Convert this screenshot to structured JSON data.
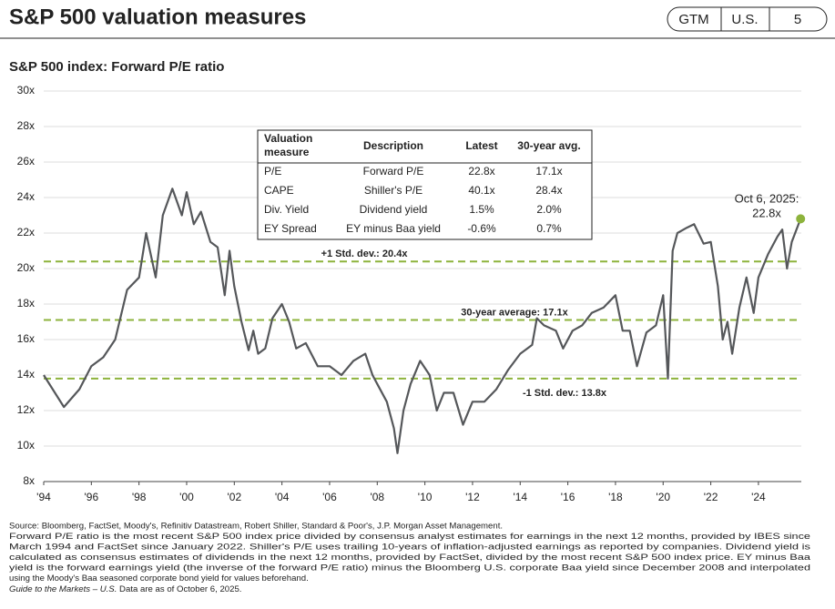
{
  "header": {
    "title": "S&P 500 valuation measures",
    "badges": [
      "GTM",
      "U.S.",
      "5"
    ]
  },
  "chart_data": {
    "type": "line",
    "title": "S&P 500 index: Forward P/E ratio",
    "x": [
      1994.0,
      1994.85,
      1995.5,
      1996.0,
      1996.5,
      1997.0,
      1997.5,
      1998.0,
      1998.3,
      1998.7,
      1999.0,
      1999.4,
      1999.8,
      2000.0,
      2000.3,
      2000.6,
      2001.0,
      2001.3,
      2001.6,
      2001.8,
      2002.0,
      2002.3,
      2002.6,
      2002.8,
      2003.0,
      2003.3,
      2003.6,
      2004.0,
      2004.3,
      2004.6,
      2005.0,
      2005.5,
      2006.0,
      2006.5,
      2007.0,
      2007.5,
      2007.8,
      2008.0,
      2008.4,
      2008.7,
      2008.85,
      2009.1,
      2009.4,
      2009.8,
      2010.2,
      2010.5,
      2010.8,
      2011.2,
      2011.6,
      2012.0,
      2012.5,
      2013.0,
      2013.5,
      2014.0,
      2014.5,
      2014.7,
      2015.0,
      2015.5,
      2015.8,
      2016.2,
      2016.6,
      2017.0,
      2017.5,
      2018.0,
      2018.3,
      2018.6,
      2018.9,
      2019.3,
      2019.7,
      2020.0,
      2020.2,
      2020.4,
      2020.6,
      2021.0,
      2021.3,
      2021.7,
      2022.0,
      2022.3,
      2022.5,
      2022.7,
      2022.9,
      2023.2,
      2023.5,
      2023.8,
      2024.0,
      2024.4,
      2024.8,
      2025.0,
      2025.2,
      2025.4,
      2025.77
    ],
    "series": [
      {
        "name": "Forward P/E",
        "color": "#55575a",
        "values": [
          14.0,
          12.2,
          13.2,
          14.5,
          15.0,
          16.0,
          18.8,
          19.5,
          22.0,
          19.5,
          23.0,
          24.5,
          23.0,
          24.3,
          22.5,
          23.2,
          21.5,
          21.2,
          18.5,
          21.0,
          19.0,
          17.0,
          15.4,
          16.5,
          15.2,
          15.5,
          17.2,
          18.0,
          17.0,
          15.5,
          15.8,
          14.5,
          14.5,
          14.0,
          14.8,
          15.2,
          14.0,
          13.5,
          12.5,
          11.0,
          9.6,
          12.0,
          13.5,
          14.8,
          14.0,
          12.0,
          13.0,
          13.0,
          11.2,
          12.5,
          12.5,
          13.2,
          14.3,
          15.2,
          15.7,
          17.2,
          16.8,
          16.5,
          15.5,
          16.5,
          16.8,
          17.5,
          17.8,
          18.5,
          16.5,
          16.5,
          14.5,
          16.4,
          16.8,
          18.5,
          13.8,
          21.0,
          22.0,
          22.3,
          22.5,
          21.4,
          21.5,
          19.0,
          16.0,
          17.0,
          15.2,
          17.8,
          19.5,
          17.5,
          19.5,
          20.8,
          21.8,
          22.2,
          20.0,
          21.5,
          22.8
        ]
      }
    ],
    "xlim": [
      1994,
      2025.8
    ],
    "xticks": [
      {
        "value": 1994,
        "label": "'94"
      },
      {
        "value": 1996,
        "label": "'96"
      },
      {
        "value": 1998,
        "label": "'98"
      },
      {
        "value": 2000,
        "label": "'00"
      },
      {
        "value": 2002,
        "label": "'02"
      },
      {
        "value": 2004,
        "label": "'04"
      },
      {
        "value": 2006,
        "label": "'06"
      },
      {
        "value": 2008,
        "label": "'08"
      },
      {
        "value": 2010,
        "label": "'10"
      },
      {
        "value": 2012,
        "label": "'12"
      },
      {
        "value": 2014,
        "label": "'14"
      },
      {
        "value": 2016,
        "label": "'16"
      },
      {
        "value": 2018,
        "label": "'18"
      },
      {
        "value": 2020,
        "label": "'20"
      },
      {
        "value": 2022,
        "label": "'22"
      },
      {
        "value": 2024,
        "label": "'24"
      }
    ],
    "ylim": [
      8,
      30
    ],
    "yticks": [
      {
        "value": 8,
        "label": "8x"
      },
      {
        "value": 10,
        "label": "10x"
      },
      {
        "value": 12,
        "label": "12x"
      },
      {
        "value": 14,
        "label": "14x"
      },
      {
        "value": 16,
        "label": "16x"
      },
      {
        "value": 18,
        "label": "18x"
      },
      {
        "value": 20,
        "label": "20x"
      },
      {
        "value": 22,
        "label": "22x"
      },
      {
        "value": 24,
        "label": "24x"
      },
      {
        "value": 26,
        "label": "26x"
      },
      {
        "value": 28,
        "label": "28x"
      },
      {
        "value": 30,
        "label": "30x"
      }
    ],
    "grid": true,
    "reference_lines": [
      {
        "label": "+1 Std. dev.: 20.4x",
        "value": 20.4,
        "color": "#8db33c"
      },
      {
        "label": "30-year average: 17.1x",
        "value": 17.1,
        "color": "#8db33c"
      },
      {
        "label": "-1 Std. dev.: 13.8x",
        "value": 13.8,
        "color": "#8db33c"
      }
    ],
    "endpoint": {
      "x": 2025.77,
      "value": 22.8,
      "color": "#8db33c",
      "label": [
        "Oct 6, 2025:",
        "22.8x"
      ]
    }
  },
  "table": {
    "header": [
      [
        "Valuation",
        "measure"
      ],
      "Description",
      "Latest",
      "30-year avg."
    ],
    "rows": [
      [
        "P/E",
        "Forward P/E",
        "22.8x",
        "17.1x"
      ],
      [
        "CAPE",
        "Shiller's P/E",
        "40.1x",
        "28.4x"
      ],
      [
        "Div. Yield",
        "Dividend yield",
        "1.5%",
        "2.0%"
      ],
      [
        "EY Spread",
        "EY minus Baa yield",
        "-0.6%",
        "0.7%"
      ]
    ]
  },
  "footnotes": [
    "Source: Bloomberg, FactSet, Moody's, Refinitiv Datastream, Robert Shiller, Standard & Poor's, J.P. Morgan Asset Management.",
    "Forward P/E ratio is the most recent S&P 500 index price divided by consensus analyst estimates for earnings in the next 12 months, provided by IBES since",
    "March 1994 and FactSet since January 2022. Shiller's P/E uses trailing 10-years of inflation-adjusted earnings as reported by companies. Dividend yield is",
    "calculated as consensus estimates of dividends in the next 12 months, provided by FactSet, divided by the most recent S&P 500 index price. EY minus Baa",
    "yield is the forward earnings yield (the inverse of the forward P/E ratio) minus the Bloomberg U.S. corporate Baa yield since December 2008 and interpolated",
    "using the Moody's Baa seasoned corporate bond yield for values beforehand.",
    [
      "Guide to the Markets – U.S.",
      " Data are as of October 6, 2025."
    ]
  ]
}
